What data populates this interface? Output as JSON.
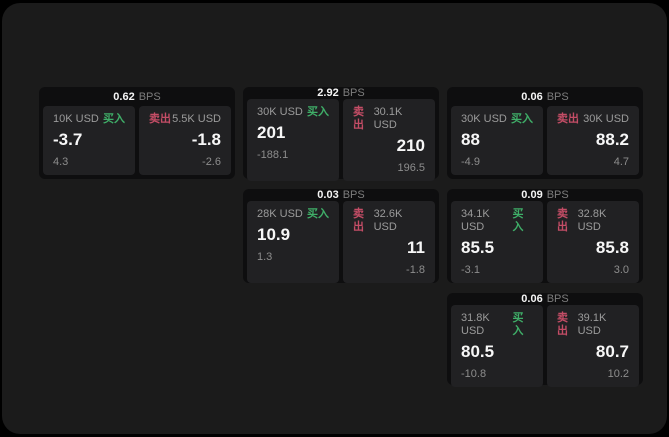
{
  "labels": {
    "bps_unit": "BPS",
    "buy": "买入",
    "sell": "卖出"
  },
  "colors": {
    "outer_bg": "#000000",
    "window_bg": "#1b1b1b",
    "card_bg": "#0e0e0f",
    "panel_bg": "#212123",
    "buy": "#3fae68",
    "sell": "#c44d66",
    "primary_text": "#f5f5f5",
    "muted_text": "#8d8d8d"
  },
  "cards": [
    {
      "row": 1,
      "col": 1,
      "bps": "0.62",
      "buy": {
        "size": "10K USD",
        "price": "-3.7",
        "delta": "4.3"
      },
      "sell": {
        "size": "5.5K USD",
        "price": "-1.8",
        "delta": "-2.6"
      }
    },
    {
      "row": 1,
      "col": 2,
      "bps": "2.92",
      "buy": {
        "size": "30K USD",
        "price": "201",
        "delta": "-188.1"
      },
      "sell": {
        "size": "30.1K USD",
        "price": "210",
        "delta": "196.5"
      }
    },
    {
      "row": 1,
      "col": 3,
      "bps": "0.06",
      "buy": {
        "size": "30K USD",
        "price": "88",
        "delta": "-4.9"
      },
      "sell": {
        "size": "30K USD",
        "price": "88.2",
        "delta": "4.7"
      }
    },
    {
      "row": 2,
      "col": 2,
      "bps": "0.03",
      "buy": {
        "size": "28K USD",
        "price": "10.9",
        "delta": "1.3"
      },
      "sell": {
        "size": "32.6K USD",
        "price": "11",
        "delta": "-1.8"
      }
    },
    {
      "row": 2,
      "col": 3,
      "bps": "0.09",
      "buy": {
        "size": "34.1K USD",
        "price": "85.5",
        "delta": "-3.1"
      },
      "sell": {
        "size": "32.8K USD",
        "price": "85.8",
        "delta": "3.0"
      }
    },
    {
      "row": 3,
      "col": 3,
      "bps": "0.06",
      "buy": {
        "size": "31.8K USD",
        "price": "80.5",
        "delta": "-10.8"
      },
      "sell": {
        "size": "39.1K USD",
        "price": "80.7",
        "delta": "10.2"
      }
    }
  ]
}
